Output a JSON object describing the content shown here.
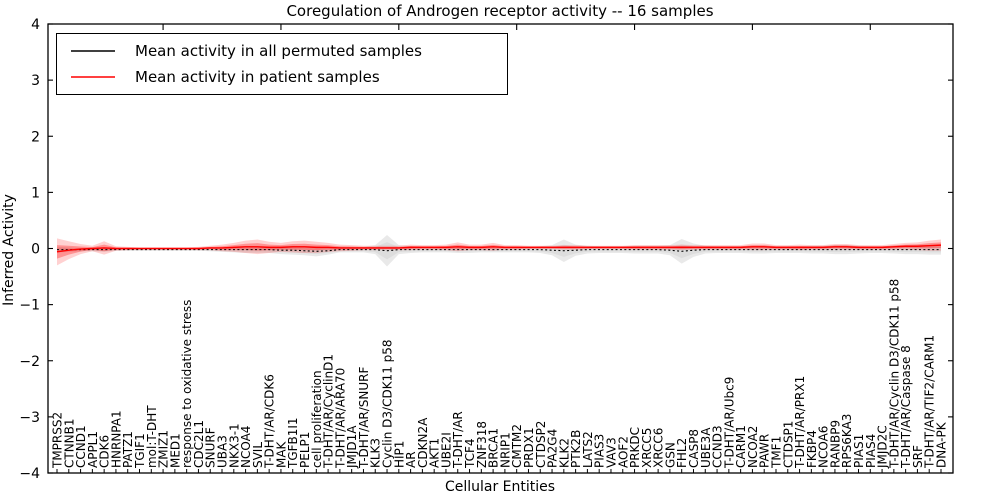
{
  "chart_data": {
    "type": "line",
    "title": "Coregulation of Androgen receptor activity -- 16 samples",
    "xlabel": "Cellular Entities",
    "ylabel": "Inferred Activity",
    "ylim": [
      -4,
      4
    ],
    "yticks": [
      4,
      3,
      2,
      1,
      0,
      -1,
      -2,
      -3,
      -4
    ],
    "grid": false,
    "legend_position": "upper left",
    "categories": [
      "TMPRSS2",
      "CTNNB1",
      "CCND1",
      "APPL1",
      "CDK6",
      "HNRNPA1",
      "PATZ1",
      "TGIF1",
      "mol:T-DHT",
      "ZMIZ1",
      "MED1",
      "response to oxidative stress",
      "CDC2L1",
      "SNURF",
      "UBA3",
      "NKX3-1",
      "NCOA4",
      "SVIL",
      "T-DHT/AR/CDK6",
      "MAK",
      "TGFB1I1",
      "PELP1",
      "cell proliferation",
      "T-DHT/AR/CyclinD1",
      "T-DHT/AR/ARA70",
      "JMJD1A",
      "T-DHT/AR/SNURF",
      "KLK3",
      "Cyclin D3/CDK11 p58",
      "HIP1",
      "AR",
      "CDKN2A",
      "AKT1",
      "UBE2I",
      "T-DHT/AR",
      "TCF4",
      "ZNF318",
      "BRCA1",
      "NRIP1",
      "CMTM2",
      "PRDX1",
      "CTDSP2",
      "PA2G4",
      "KLK2",
      "PTK2B",
      "LATS2",
      "PIAS3",
      "VAV3",
      "AOF2",
      "PRKDC",
      "XRCC5",
      "XRCC6",
      "GSN",
      "FHL2",
      "CASP8",
      "UBE3A",
      "CCND3",
      "T-DHT/AR/Ubc9",
      "CARM1",
      "NCOA2",
      "PAWR",
      "TMF1",
      "CTDSP1",
      "T-DHT/AR/PRX1",
      "FKBP4",
      "NCOA6",
      "RANBP9",
      "RPS6KA3",
      "PIAS1",
      "PIAS4",
      "JMJD2C",
      "T-DHT/AR/Cyclin D3/CDK11 p58",
      "T-DHT/AR/Caspase 8",
      "SRF",
      "T-DHT/AR/TIF2/CARM1",
      "DNA-PK"
    ],
    "series": [
      {
        "name": "Mean activity in all permuted samples",
        "color": "#000000",
        "band_color": "#999999",
        "line_style": "dotted",
        "mean": [
          -0.02,
          -0.02,
          -0.02,
          -0.02,
          -0.02,
          -0.02,
          -0.02,
          -0.02,
          -0.02,
          -0.02,
          -0.02,
          -0.02,
          -0.02,
          -0.02,
          -0.02,
          -0.02,
          -0.02,
          -0.02,
          -0.02,
          -0.03,
          -0.03,
          -0.04,
          -0.05,
          -0.04,
          -0.02,
          -0.02,
          -0.02,
          -0.02,
          -0.04,
          -0.02,
          -0.02,
          -0.02,
          -0.02,
          -0.02,
          -0.02,
          -0.02,
          -0.02,
          -0.02,
          -0.02,
          -0.02,
          -0.02,
          -0.02,
          -0.03,
          -0.04,
          -0.03,
          -0.02,
          -0.02,
          -0.02,
          -0.02,
          -0.02,
          -0.02,
          -0.02,
          -0.03,
          -0.05,
          -0.03,
          -0.02,
          -0.02,
          -0.02,
          -0.02,
          -0.02,
          -0.02,
          -0.02,
          -0.02,
          -0.02,
          -0.02,
          -0.02,
          -0.02,
          -0.02,
          -0.02,
          -0.02,
          -0.02,
          -0.02,
          -0.02,
          -0.02,
          -0.02,
          -0.02
        ],
        "std": [
          0.05,
          0.04,
          0.03,
          0.03,
          0.04,
          0.02,
          0.02,
          0.02,
          0.02,
          0.02,
          0.02,
          0.02,
          0.02,
          0.03,
          0.04,
          0.05,
          0.06,
          0.06,
          0.06,
          0.07,
          0.08,
          0.08,
          0.09,
          0.07,
          0.05,
          0.05,
          0.05,
          0.08,
          0.28,
          0.08,
          0.06,
          0.05,
          0.05,
          0.05,
          0.06,
          0.06,
          0.05,
          0.05,
          0.05,
          0.05,
          0.05,
          0.06,
          0.09,
          0.2,
          0.1,
          0.07,
          0.06,
          0.06,
          0.06,
          0.07,
          0.07,
          0.07,
          0.09,
          0.22,
          0.12,
          0.07,
          0.06,
          0.06,
          0.06,
          0.07,
          0.07,
          0.06,
          0.06,
          0.06,
          0.07,
          0.07,
          0.08,
          0.08,
          0.07,
          0.06,
          0.06,
          0.07,
          0.08,
          0.08,
          0.09,
          0.09
        ]
      },
      {
        "name": "Mean activity in patient samples",
        "color": "#ff0000",
        "band_color": "#ff0000",
        "line_style": "solid",
        "mean": [
          -0.06,
          -0.03,
          -0.01,
          0,
          0.01,
          0,
          0,
          0,
          0,
          0,
          0,
          0,
          0,
          0.01,
          0.01,
          0.02,
          0.03,
          0.03,
          0.02,
          0.02,
          0.03,
          0.03,
          0.02,
          0.02,
          0.01,
          0.01,
          0.01,
          0.01,
          0.01,
          0.01,
          0.02,
          0.02,
          0.02,
          0.02,
          0.03,
          0.02,
          0.02,
          0.03,
          0.02,
          0.02,
          0.02,
          0.02,
          0.02,
          0.02,
          0.02,
          0.02,
          0.02,
          0.02,
          0.02,
          0.02,
          0.02,
          0.02,
          0.02,
          0.02,
          0.02,
          0.02,
          0.02,
          0.02,
          0.02,
          0.03,
          0.03,
          0.02,
          0.02,
          0.02,
          0.02,
          0.02,
          0.03,
          0.03,
          0.02,
          0.02,
          0.02,
          0.03,
          0.04,
          0.04,
          0.05,
          0.06
        ],
        "std": [
          0.24,
          0.16,
          0.09,
          0.05,
          0.12,
          0.04,
          0.03,
          0.02,
          0.02,
          0.02,
          0.02,
          0.02,
          0.03,
          0.04,
          0.06,
          0.08,
          0.11,
          0.13,
          0.1,
          0.08,
          0.1,
          0.11,
          0.1,
          0.08,
          0.06,
          0.05,
          0.04,
          0.04,
          0.04,
          0.04,
          0.05,
          0.04,
          0.04,
          0.05,
          0.08,
          0.05,
          0.05,
          0.07,
          0.04,
          0.04,
          0.03,
          0.03,
          0.03,
          0.04,
          0.04,
          0.03,
          0.03,
          0.03,
          0.03,
          0.04,
          0.04,
          0.04,
          0.04,
          0.05,
          0.04,
          0.04,
          0.04,
          0.04,
          0.04,
          0.06,
          0.06,
          0.04,
          0.04,
          0.05,
          0.04,
          0.04,
          0.05,
          0.05,
          0.04,
          0.04,
          0.04,
          0.05,
          0.06,
          0.07,
          0.09,
          0.1
        ]
      }
    ]
  }
}
